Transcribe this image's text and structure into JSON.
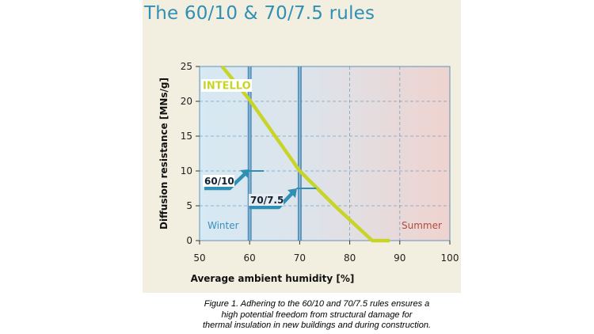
{
  "title": "The 60/10 & 70/7.5 rules",
  "caption": {
    "line1": "Figure 1. Adhering to the 60/10 and 70/7.5 rules ensures a",
    "line2": "high potential freedom from structural damage for",
    "line3": "thermal insulation in new buildings and during construction."
  },
  "colors": {
    "accent": "#2f8fb4",
    "curve": "#c8d428",
    "winter_bg": "#d7e9f3",
    "summer_bg": "#eed3cf",
    "panel_bg": "#f3efe0",
    "grid": "#5b93bb"
  },
  "chart_data": {
    "type": "line",
    "xlabel": "Average ambient humidity [%]",
    "ylabel": "Diffusion resistance [MNs/g]",
    "xlim": [
      50,
      100
    ],
    "ylim": [
      0,
      25
    ],
    "x_ticks": [
      "50",
      "60",
      "70",
      "80",
      "90",
      "100"
    ],
    "y_ticks": [
      "0",
      "5",
      "10",
      "15",
      "20",
      "25"
    ],
    "grid": true,
    "series": [
      {
        "name": "INTELLO",
        "x": [
          54.5,
          60,
          70,
          77,
          84.5,
          88
        ],
        "y": [
          25,
          20.2,
          10,
          5,
          0,
          0
        ]
      }
    ],
    "annotations": [
      {
        "text": "60/10",
        "x": 60,
        "y": 10
      },
      {
        "text": "70/7.5",
        "x": 70,
        "y": 7.5
      },
      {
        "text": "Winter"
      },
      {
        "text": "Summer"
      }
    ]
  }
}
